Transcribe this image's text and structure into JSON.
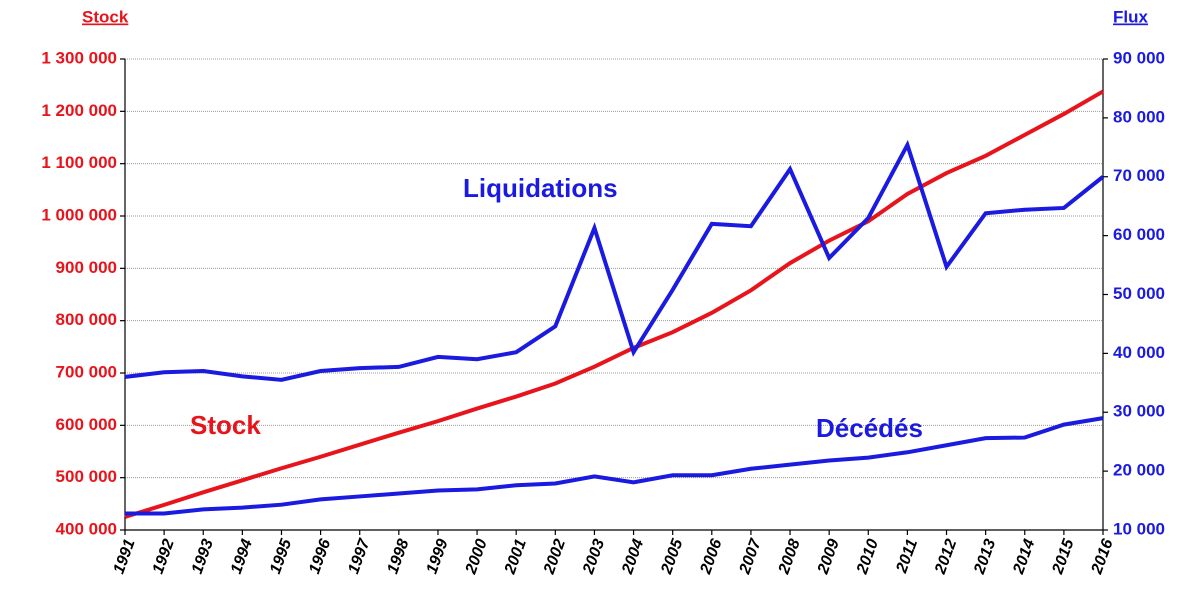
{
  "chart_data": {
    "type": "line",
    "ylabel": "Stock",
    "y2label": "Flux",
    "categories": [
      "1991",
      "1992",
      "1993",
      "1994",
      "1995",
      "1996",
      "1997",
      "1998",
      "1999",
      "2000",
      "2001",
      "2002",
      "2003",
      "2004",
      "2005",
      "2006",
      "2007",
      "2008",
      "2009",
      "2010",
      "2011",
      "2012",
      "2013",
      "2014",
      "2015",
      "2016"
    ],
    "series": [
      {
        "name": "Stock",
        "color": "#e8141b",
        "axis": "y",
        "values": [
          425000,
          448000,
          472000,
          495000,
          518000,
          540000,
          563000,
          586000,
          608000,
          632000,
          655000,
          680000,
          712000,
          748000,
          778000,
          815000,
          858000,
          910000,
          953000,
          990000,
          1042000,
          1082000,
          1115000,
          1155000,
          1195000,
          1238000
        ]
      },
      {
        "name": "Liquidations",
        "color": "#1a1ae0",
        "axis": "y2",
        "values": [
          36000,
          36800,
          37000,
          36100,
          35500,
          37000,
          37500,
          37700,
          39400,
          39000,
          40200,
          44600,
          61300,
          40200,
          50800,
          62000,
          61600,
          71300,
          56200,
          63000,
          75400,
          54700,
          63800,
          64400,
          64700,
          70000
        ]
      },
      {
        "name": "Décédés",
        "color": "#1a1ae0",
        "axis": "y2",
        "values": [
          12800,
          12800,
          13500,
          13800,
          14300,
          15200,
          15700,
          16200,
          16700,
          16900,
          17600,
          17900,
          19100,
          18100,
          19300,
          19300,
          20400,
          21100,
          21800,
          22300,
          23200,
          24400,
          25600,
          25700,
          27900,
          29000
        ]
      }
    ],
    "ylim": [
      400000,
      1300000
    ],
    "yticks": [
      {
        "value": 400000,
        "label": "400 000"
      },
      {
        "value": 500000,
        "label": "500 000"
      },
      {
        "value": 600000,
        "label": "600 000"
      },
      {
        "value": 700000,
        "label": "700 000"
      },
      {
        "value": 800000,
        "label": "800 000"
      },
      {
        "value": 900000,
        "label": "900 000"
      },
      {
        "value": 1000000,
        "label": "1 000 000"
      },
      {
        "value": 1100000,
        "label": "1 100 000"
      },
      {
        "value": 1200000,
        "label": "1 200 000"
      },
      {
        "value": 1300000,
        "label": "1 300 000"
      }
    ],
    "y2lim": [
      10000,
      90000
    ],
    "y2ticks": [
      {
        "value": 10000,
        "label": "10 000"
      },
      {
        "value": 20000,
        "label": "20 000"
      },
      {
        "value": 30000,
        "label": "30 000"
      },
      {
        "value": 40000,
        "label": "40 000"
      },
      {
        "value": 50000,
        "label": "50 000"
      },
      {
        "value": 60000,
        "label": "60 000"
      },
      {
        "value": 70000,
        "label": "70 000"
      },
      {
        "value": 80000,
        "label": "80 000"
      },
      {
        "value": 90000,
        "label": "90 000"
      }
    ],
    "grid": true
  }
}
